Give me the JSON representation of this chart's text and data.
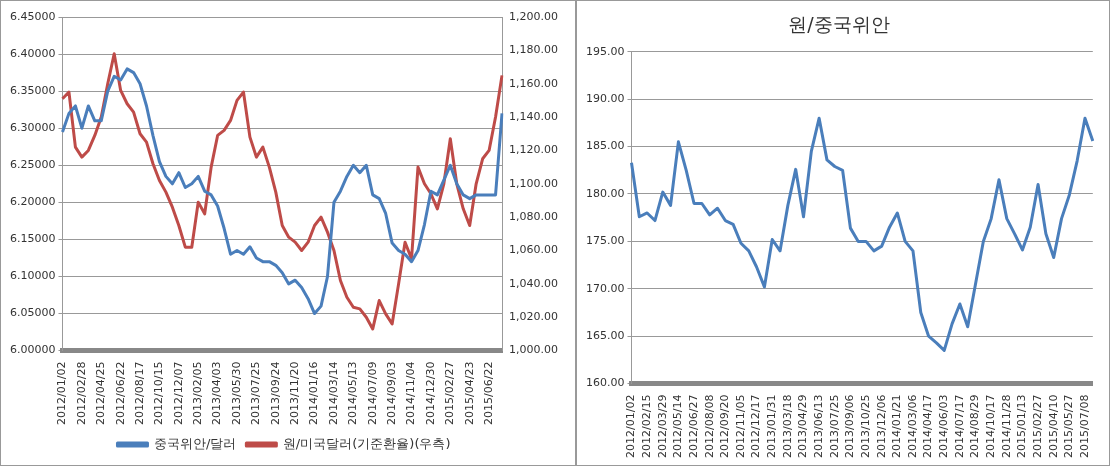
{
  "chart_data": [
    {
      "type": "line",
      "categories": [
        "2012/01/02",
        null,
        null,
        "2012/02/28",
        null,
        null,
        "2012/04/25",
        null,
        null,
        "2012/06/22",
        null,
        null,
        "2012/08/17",
        null,
        null,
        "2012/10/15",
        null,
        null,
        "2012/12/07",
        null,
        null,
        "2013/02/05",
        null,
        null,
        "2013/04/03",
        null,
        null,
        "2013/05/30",
        null,
        null,
        "2013/07/25",
        null,
        null,
        "2013/09/24",
        null,
        null,
        "2013/11/20",
        null,
        null,
        "2014/01/16",
        null,
        null,
        "2014/03/14",
        null,
        null,
        "2014/05/13",
        null,
        null,
        "2014/07/09",
        null,
        null,
        "2014/09/03",
        null,
        null,
        "2014/11/04",
        null,
        null,
        "2014/12/30",
        null,
        null,
        "2015/02/27",
        null,
        null,
        "2015/04/23",
        null,
        null,
        "2015/06/22",
        null,
        null
      ],
      "series": [
        {
          "name": "중국위안/달러",
          "color": "#4a7ebb",
          "values": [
            6.295,
            6.32,
            6.33,
            6.3,
            6.33,
            6.31,
            6.31,
            6.35,
            6.37,
            6.365,
            6.38,
            6.375,
            6.36,
            6.33,
            6.29,
            6.255,
            6.235,
            6.225,
            6.24,
            6.22,
            6.225,
            6.235,
            6.215,
            6.21,
            6.195,
            6.165,
            6.13,
            6.135,
            6.13,
            6.14,
            6.125,
            6.12,
            6.12,
            6.115,
            6.105,
            6.09,
            6.095,
            6.085,
            6.07,
            6.05,
            6.06,
            6.1,
            6.2,
            6.215,
            6.235,
            6.25,
            6.24,
            6.25,
            6.21,
            6.205,
            6.185,
            6.145,
            6.135,
            6.13,
            6.12,
            6.135,
            6.17,
            6.215,
            6.21,
            6.23,
            6.25,
            6.225,
            6.21,
            6.205,
            6.21,
            6.21,
            6.21,
            6.21,
            6.32
          ]
        },
        {
          "name": "원/미국달러(기준환율)(우측)",
          "color": "#be4b48",
          "axis": "y2",
          "values": [
            1151,
            1155,
            1122,
            1116,
            1120,
            1129,
            1140,
            1160,
            1178,
            1156,
            1148,
            1143,
            1130,
            1125,
            1112,
            1102,
            1095,
            1086,
            1075,
            1062,
            1062,
            1089,
            1082,
            1110,
            1129,
            1132,
            1138,
            1150,
            1155,
            1128,
            1116,
            1122,
            1110,
            1095,
            1075,
            1068,
            1065,
            1060,
            1065,
            1075,
            1080,
            1071,
            1060,
            1042,
            1032,
            1026,
            1025,
            1020,
            1013,
            1030,
            1022,
            1016,
            1040,
            1065,
            1055,
            1110,
            1100,
            1094,
            1085,
            1100,
            1127,
            1100,
            1085,
            1075,
            1100,
            1115,
            1120,
            1140,
            1165
          ]
        }
      ],
      "ylim": [
        6.0,
        6.45
      ],
      "yticks": [
        {
          "value": 6.0,
          "label": "6.00000"
        },
        {
          "value": 6.05,
          "label": "6.05000"
        },
        {
          "value": 6.1,
          "label": "6.10000"
        },
        {
          "value": 6.15,
          "label": "6.15000"
        },
        {
          "value": 6.2,
          "label": "6.20000"
        },
        {
          "value": 6.25,
          "label": "6.25000"
        },
        {
          "value": 6.3,
          "label": "6.30000"
        },
        {
          "value": 6.35,
          "label": "6.35000"
        },
        {
          "value": 6.4,
          "label": "6.40000"
        },
        {
          "value": 6.45,
          "label": "6.45000"
        }
      ],
      "y2lim": [
        1000,
        1200
      ],
      "y2ticks": [
        {
          "value": 1000,
          "label": "1,000.00"
        },
        {
          "value": 1020,
          "label": "1,020.00"
        },
        {
          "value": 1040,
          "label": "1,040.00"
        },
        {
          "value": 1060,
          "label": "1,060.00"
        },
        {
          "value": 1080,
          "label": "1,080.00"
        },
        {
          "value": 1100,
          "label": "1,100.00"
        },
        {
          "value": 1120,
          "label": "1,120.00"
        },
        {
          "value": 1140,
          "label": "1,140.00"
        },
        {
          "value": 1160,
          "label": "1,160.00"
        },
        {
          "value": 1180,
          "label": "1,180.00"
        },
        {
          "value": 1200,
          "label": "1,200.00"
        }
      ],
      "grid": "y",
      "legend": "bottom"
    },
    {
      "type": "line",
      "title": "원/중국위안",
      "categories": [
        "2012/01/02",
        null,
        "2012/02/15",
        null,
        "2012/03/29",
        null,
        "2012/05/14",
        null,
        "2012/06/27",
        null,
        "2012/08/08",
        null,
        "2012/09/20",
        null,
        "2012/11/05",
        null,
        "2012/12/17",
        null,
        "2013/01/31",
        null,
        "2013/03/18",
        null,
        "2013/04/29",
        null,
        "2013/06/13",
        null,
        "2013/07/25",
        null,
        "2013/09/06",
        null,
        "2013/10/25",
        null,
        "2013/12/06",
        null,
        "2014/01/21",
        null,
        "2014/03/06",
        null,
        "2014/04/17",
        null,
        "2014/06/03",
        null,
        "2014/07/17",
        null,
        "2014/08/29",
        null,
        "2014/10/17",
        null,
        "2014/11/28",
        null,
        "2015/01/13",
        null,
        "2015/02/27",
        null,
        "2015/04/10",
        null,
        "2015/05/27",
        null,
        "2015/07/08",
        null
      ],
      "color": "#4a7ebb",
      "values": [
        183.3,
        177.6,
        178,
        177.2,
        180.2,
        178.8,
        185.5,
        182.5,
        179,
        179,
        177.8,
        178.5,
        177.2,
        176.8,
        174.8,
        174,
        172.3,
        170.2,
        175.2,
        174,
        178.8,
        182.6,
        177.6,
        184.5,
        188,
        183.6,
        182.9,
        182.5,
        176.4,
        175,
        175,
        174,
        174.5,
        176.5,
        178,
        175,
        174,
        167.5,
        165,
        164.3,
        163.5,
        166.3,
        168.4,
        166,
        170.5,
        175,
        177.4,
        181.5,
        177.4,
        175.8,
        174.1,
        176.5,
        181,
        175.8,
        173.3,
        177.4,
        179.9,
        183.5,
        188,
        185.6
      ],
      "ylim": [
        160,
        195
      ],
      "yticks": [
        {
          "value": 160,
          "label": "160.00"
        },
        {
          "value": 165,
          "label": "165.00"
        },
        {
          "value": 170,
          "label": "170.00"
        },
        {
          "value": 175,
          "label": "175.00"
        },
        {
          "value": 180,
          "label": "180.00"
        },
        {
          "value": 185,
          "label": "185.00"
        },
        {
          "value": 190,
          "label": "190.00"
        },
        {
          "value": 195,
          "label": "195.00"
        }
      ],
      "grid": "y"
    }
  ]
}
